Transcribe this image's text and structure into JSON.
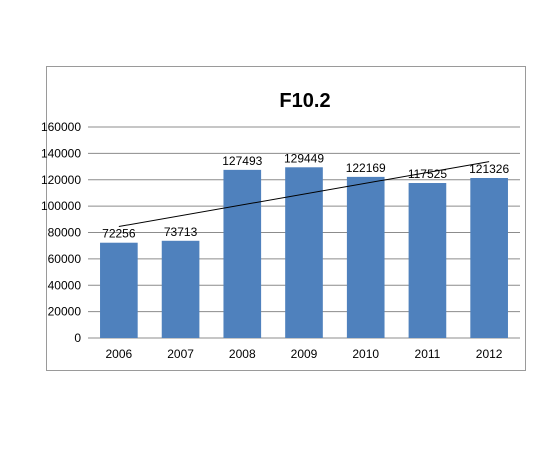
{
  "chart_data": {
    "type": "bar",
    "title": "F10.2",
    "categories": [
      "2006",
      "2007",
      "2008",
      "2009",
      "2010",
      "2011",
      "2012"
    ],
    "values": [
      72256,
      73713,
      127493,
      129449,
      122169,
      117525,
      121326
    ],
    "data_labels": [
      "72256",
      "73713",
      "127493",
      "129449",
      "122169",
      "117525",
      "121326"
    ],
    "ylim": [
      0,
      160000
    ],
    "yticks": [
      0,
      20000,
      40000,
      60000,
      80000,
      100000,
      120000,
      140000,
      160000
    ],
    "ytick_labels": [
      "0",
      "20000",
      "40000",
      "60000",
      "80000",
      "100000",
      "120000",
      "140000",
      "160000"
    ],
    "grid": true,
    "trendline": "linear",
    "colors": {
      "bar": "#4f81bd",
      "trendline": "#000000",
      "grid": "#8c8c8c"
    }
  }
}
